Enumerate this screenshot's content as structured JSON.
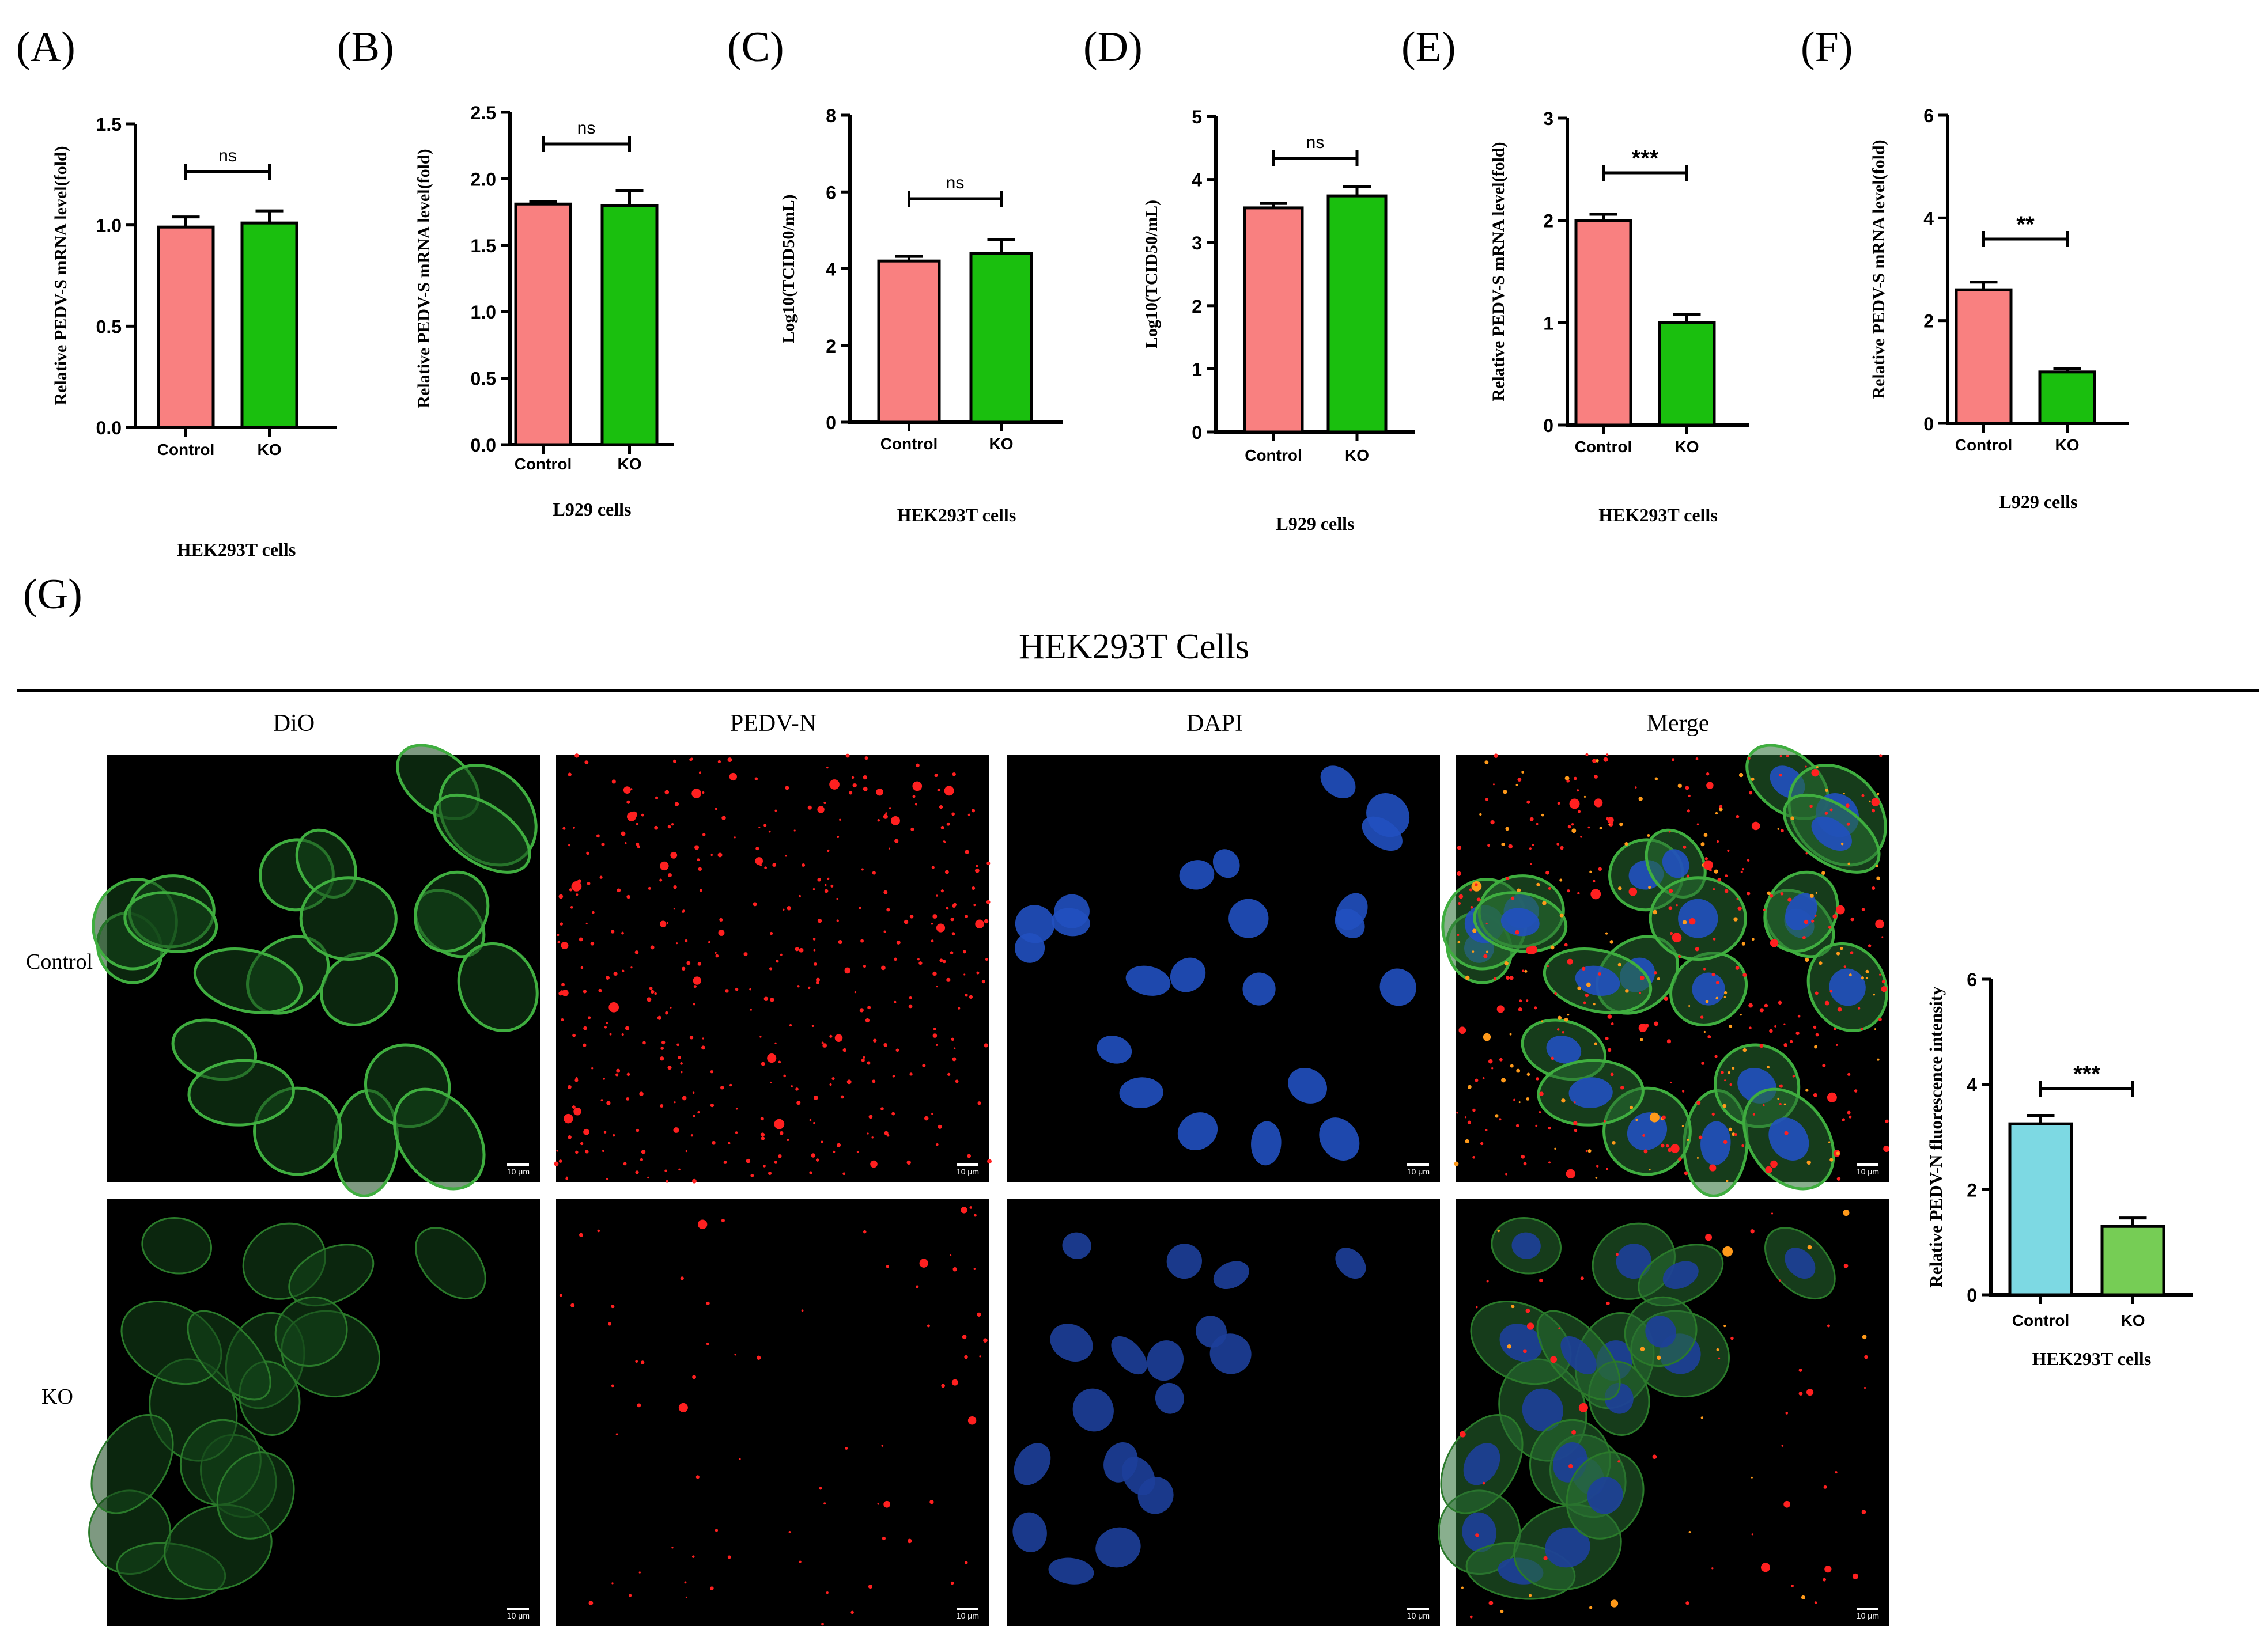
{
  "panel_letters": [
    "(A)",
    "(B)",
    "(C)",
    "(D)",
    "(E)",
    "(F)",
    "(G)"
  ],
  "figure_g": {
    "title": "HEK293T  Cells",
    "columns": [
      "DiO",
      "PEDV-N",
      "DAPI",
      "Merge"
    ],
    "rows": [
      "Control",
      "KO"
    ],
    "scale_label": "10 μm"
  },
  "colors": {
    "control": "#F98080",
    "ko": "#1ABF0E",
    "g_control": "#7DD9E3",
    "g_ko": "#76CD55"
  },
  "chart_data": [
    {
      "id": "A",
      "type": "bar",
      "categories": [
        "Control",
        "KO"
      ],
      "values": [
        0.99,
        1.01
      ],
      "errors": [
        0.05,
        0.06
      ],
      "ylabel": "Relative PEDV-S mRNA level(fold)",
      "xlabel": "HEK293T cells",
      "ylim": [
        0,
        1.5
      ],
      "yticks": [
        "0.0",
        "0.5",
        "1.0",
        "1.5"
      ],
      "significance": "ns"
    },
    {
      "id": "B",
      "type": "bar",
      "categories": [
        "Control",
        "KO"
      ],
      "values": [
        1.81,
        1.8
      ],
      "errors": [
        0.02,
        0.11
      ],
      "ylabel": "Relative PEDV-S mRNA level(fold)",
      "xlabel": "L929 cells",
      "ylim": [
        0,
        2.5
      ],
      "yticks": [
        "0.0",
        "0.5",
        "1.0",
        "1.5",
        "2.0",
        "2.5"
      ],
      "significance": "ns"
    },
    {
      "id": "C",
      "type": "bar",
      "categories": [
        "Control",
        "KO"
      ],
      "values": [
        4.2,
        4.4
      ],
      "errors": [
        0.12,
        0.35
      ],
      "ylabel": "Log10(TCID50/mL)",
      "xlabel": "HEK293T cells",
      "ylim": [
        0,
        8
      ],
      "yticks": [
        "0",
        "2",
        "4",
        "6",
        "8"
      ],
      "significance": "ns"
    },
    {
      "id": "D",
      "type": "bar",
      "categories": [
        "Control",
        "KO"
      ],
      "values": [
        3.55,
        3.74
      ],
      "errors": [
        0.07,
        0.15
      ],
      "ylabel": "Log10(TCID50/mL)",
      "xlabel": "L929 cells",
      "ylim": [
        0,
        5
      ],
      "yticks": [
        "0",
        "1",
        "2",
        "3",
        "4",
        "5"
      ],
      "significance": "ns"
    },
    {
      "id": "E",
      "type": "bar",
      "categories": [
        "Control",
        "KO"
      ],
      "values": [
        2.0,
        1.0
      ],
      "errors": [
        0.06,
        0.08
      ],
      "ylabel": "Relative PEDV-S mRNA level(fold)",
      "xlabel": "HEK293T cells",
      "ylim": [
        0,
        3
      ],
      "yticks": [
        "0",
        "1",
        "2",
        "3"
      ],
      "significance": "***"
    },
    {
      "id": "F",
      "type": "bar",
      "categories": [
        "Control",
        "KO"
      ],
      "values": [
        2.6,
        1.0
      ],
      "errors": [
        0.15,
        0.06
      ],
      "ylabel": "Relative PEDV-S mRNA level(fold)",
      "xlabel": "L929 cells",
      "ylim": [
        0,
        6
      ],
      "yticks": [
        "0",
        "2",
        "4",
        "6"
      ],
      "significance": "**"
    },
    {
      "id": "G",
      "type": "bar",
      "categories": [
        "Control",
        "KO"
      ],
      "values": [
        3.25,
        1.3
      ],
      "errors": [
        0.16,
        0.16
      ],
      "ylabel": "Relative PEDV-N fluorescence intensity",
      "xlabel": "HEK293T cells",
      "ylim": [
        0,
        6
      ],
      "yticks": [
        "0",
        "2",
        "4",
        "6"
      ],
      "significance": "***"
    }
  ]
}
